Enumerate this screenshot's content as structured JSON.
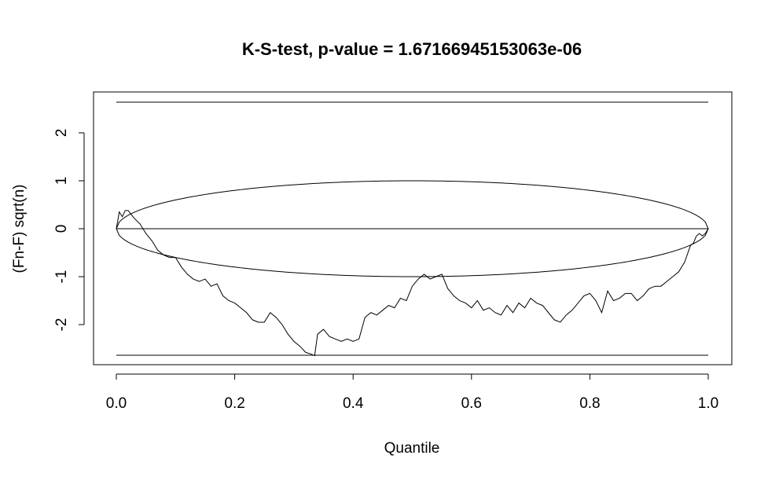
{
  "chart_data": {
    "type": "line",
    "title": "K-S-test, p-value =  1.67166945153063e-06",
    "xlabel": "Quantile",
    "ylabel": "(Fn-F) sqrt(n)",
    "xlim": [
      0,
      1
    ],
    "ylim": [
      -2.8,
      2.8
    ],
    "xticks": [
      0.0,
      0.2,
      0.4,
      0.6,
      0.8,
      1.0
    ],
    "xtick_labels": [
      "0.0",
      "0.2",
      "0.4",
      "0.6",
      "0.8",
      "1.0"
    ],
    "yticks": [
      -2,
      -1,
      0,
      1,
      2
    ],
    "ytick_labels": [
      "-2",
      "-1",
      "0",
      "1",
      "2"
    ],
    "grid": false,
    "reference_lines": {
      "upper_bound": 2.64,
      "lower_bound": -2.64,
      "zero": 0,
      "band_amplitude": 1
    },
    "series": [
      {
        "values_x": [
          0.0,
          0.005,
          0.01,
          0.015,
          0.02,
          0.025,
          0.03,
          0.04,
          0.05,
          0.06,
          0.07,
          0.08,
          0.09,
          0.1,
          0.11,
          0.12,
          0.13,
          0.14,
          0.15,
          0.16,
          0.17,
          0.18,
          0.19,
          0.2,
          0.21,
          0.22,
          0.23,
          0.24,
          0.25,
          0.26,
          0.27,
          0.28,
          0.29,
          0.3,
          0.31,
          0.32,
          0.33,
          0.335,
          0.34,
          0.35,
          0.36,
          0.37,
          0.38,
          0.39,
          0.4,
          0.41,
          0.42,
          0.43,
          0.44,
          0.45,
          0.46,
          0.47,
          0.48,
          0.49,
          0.5,
          0.51,
          0.52,
          0.53,
          0.54,
          0.55,
          0.56,
          0.57,
          0.58,
          0.59,
          0.6,
          0.61,
          0.62,
          0.63,
          0.64,
          0.65,
          0.66,
          0.67,
          0.68,
          0.69,
          0.7,
          0.71,
          0.72,
          0.73,
          0.74,
          0.75,
          0.76,
          0.77,
          0.78,
          0.79,
          0.8,
          0.81,
          0.82,
          0.83,
          0.84,
          0.85,
          0.86,
          0.87,
          0.88,
          0.89,
          0.9,
          0.91,
          0.92,
          0.93,
          0.94,
          0.95,
          0.96,
          0.97,
          0.975,
          0.98,
          0.985,
          0.99,
          0.995,
          1.0
        ],
        "values_y": [
          0.0,
          0.35,
          0.25,
          0.38,
          0.38,
          0.3,
          0.22,
          0.1,
          -0.1,
          -0.25,
          -0.45,
          -0.55,
          -0.6,
          -0.6,
          -0.8,
          -0.95,
          -1.05,
          -1.1,
          -1.05,
          -1.2,
          -1.15,
          -1.4,
          -1.5,
          -1.55,
          -1.65,
          -1.75,
          -1.9,
          -1.95,
          -1.95,
          -1.75,
          -1.85,
          -2.0,
          -2.2,
          -2.35,
          -2.45,
          -2.58,
          -2.62,
          -2.65,
          -2.2,
          -2.1,
          -2.25,
          -2.3,
          -2.35,
          -2.3,
          -2.35,
          -2.3,
          -1.85,
          -1.75,
          -1.8,
          -1.7,
          -1.6,
          -1.65,
          -1.45,
          -1.5,
          -1.2,
          -1.05,
          -0.95,
          -1.05,
          -1.0,
          -0.95,
          -1.25,
          -1.4,
          -1.5,
          -1.55,
          -1.65,
          -1.5,
          -1.7,
          -1.65,
          -1.75,
          -1.8,
          -1.6,
          -1.75,
          -1.55,
          -1.65,
          -1.45,
          -1.55,
          -1.6,
          -1.75,
          -1.9,
          -1.95,
          -1.8,
          -1.7,
          -1.55,
          -1.4,
          -1.35,
          -1.5,
          -1.75,
          -1.3,
          -1.5,
          -1.45,
          -1.35,
          -1.35,
          -1.5,
          -1.4,
          -1.25,
          -1.2,
          -1.2,
          -1.1,
          -1.0,
          -0.9,
          -0.7,
          -0.35,
          -0.3,
          -0.15,
          -0.1,
          -0.15,
          -0.1,
          0.0
        ]
      }
    ]
  }
}
